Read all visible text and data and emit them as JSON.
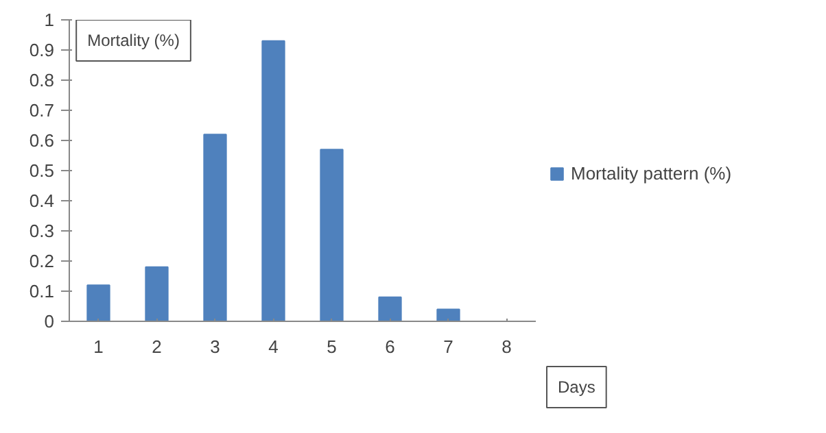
{
  "chart_data": {
    "type": "bar",
    "xlabel": "Days",
    "ylabel": "Mortality (%)",
    "categories": [
      "1",
      "2",
      "3",
      "4",
      "5",
      "6",
      "7",
      "8"
    ],
    "series": [
      {
        "name": "Mortality pattern (%)",
        "color": "#4f81bd",
        "values": [
          0.12,
          0.18,
          0.62,
          0.93,
          0.57,
          0.08,
          0.04,
          0
        ]
      }
    ],
    "ylim": [
      0,
      1
    ],
    "yticks": [
      0,
      0.1,
      0.2,
      0.3,
      0.4,
      0.5,
      0.6,
      0.7,
      0.8,
      0.9,
      1
    ],
    "grid": false,
    "legend": "right"
  }
}
